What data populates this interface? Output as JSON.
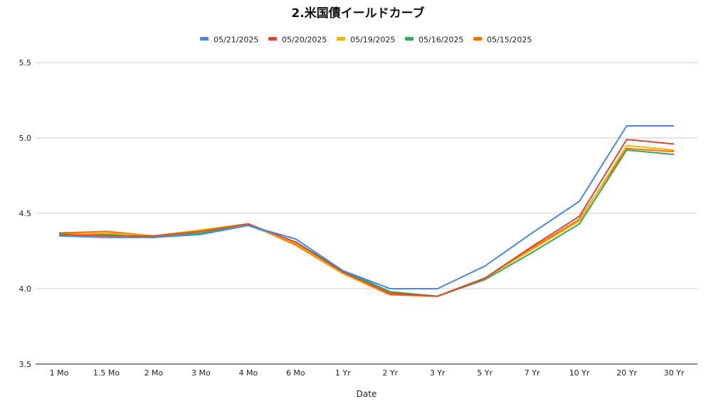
{
  "chart_data": {
    "type": "line",
    "title": "2.米国債イールドカーブ",
    "xlabel": "Date",
    "ylabel": "",
    "categories": [
      "1 Mo",
      "1.5 Mo",
      "2 Mo",
      "3 Mo",
      "4 Mo",
      "6 Mo",
      "1 Yr",
      "2 Yr",
      "3 Yr",
      "5 Yr",
      "7 Yr",
      "10 Yr",
      "20 Yr",
      "30 Yr"
    ],
    "ylim": [
      3.5,
      5.5
    ],
    "yticks": [
      "3.5",
      "4.0",
      "4.5",
      "5.0",
      "5.5"
    ],
    "grid": true,
    "legend_position": "top",
    "series": [
      {
        "name": "05/21/2025",
        "color": "#4a86e8",
        "values": [
          4.35,
          4.34,
          4.34,
          4.36,
          4.42,
          4.33,
          4.12,
          4.0,
          4.0,
          4.15,
          4.37,
          4.58,
          5.08,
          5.08
        ]
      },
      {
        "name": "05/20/2025",
        "color": "#db4437",
        "values": [
          4.36,
          4.35,
          4.35,
          4.38,
          4.43,
          4.31,
          4.11,
          3.97,
          3.95,
          4.07,
          4.28,
          4.48,
          4.99,
          4.96
        ]
      },
      {
        "name": "05/19/2025",
        "color": "#f4b400",
        "values": [
          4.36,
          4.37,
          4.35,
          4.39,
          4.43,
          4.3,
          4.1,
          3.97,
          3.95,
          4.07,
          4.26,
          4.45,
          4.95,
          4.92
        ]
      },
      {
        "name": "05/16/2025",
        "color": "#34a853",
        "values": [
          4.37,
          4.36,
          4.34,
          4.37,
          4.42,
          4.31,
          4.12,
          3.98,
          3.95,
          4.06,
          4.24,
          4.43,
          4.92,
          4.89
        ]
      },
      {
        "name": "05/15/2025",
        "color": "#ff6d01",
        "values": [
          4.37,
          4.38,
          4.35,
          4.38,
          4.43,
          4.29,
          4.1,
          3.96,
          3.95,
          4.07,
          4.27,
          4.46,
          4.93,
          4.91
        ]
      }
    ]
  }
}
